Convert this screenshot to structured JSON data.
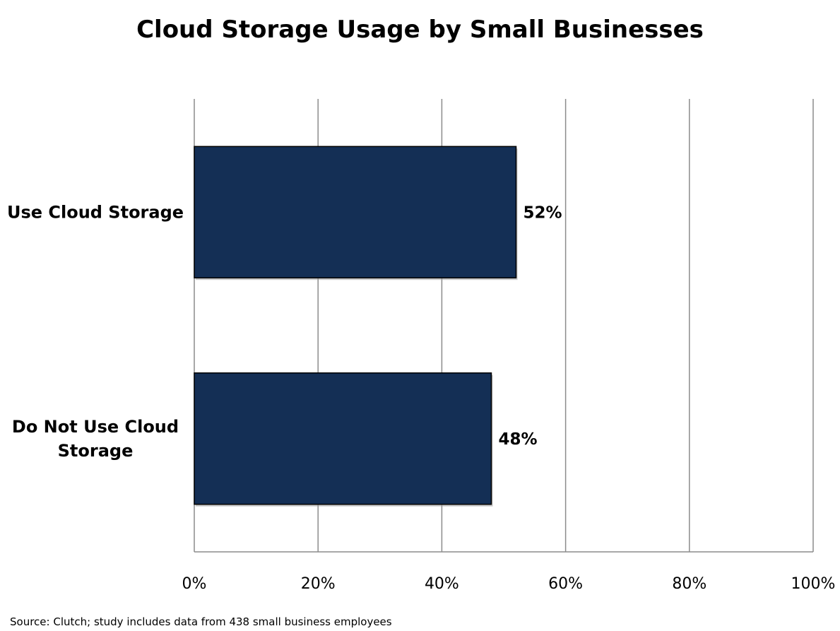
{
  "chart_data": {
    "type": "bar",
    "orientation": "horizontal",
    "title": "Cloud Storage Usage by Small Businesses",
    "categories": [
      "Use Cloud Storage",
      "Do Not Use Cloud Storage"
    ],
    "category_lines": [
      [
        "Use Cloud Storage"
      ],
      [
        "Do Not Use Cloud",
        "Storage"
      ]
    ],
    "values": [
      52,
      48
    ],
    "data_labels": [
      "52%",
      "48%"
    ],
    "xlim": [
      0,
      100
    ],
    "x_ticks": [
      0,
      20,
      40,
      60,
      80,
      100
    ],
    "x_tick_labels": [
      "0%",
      "20%",
      "40%",
      "60%",
      "80%",
      "100%"
    ],
    "grid": "vertical",
    "legend": "none",
    "bar_color": "#142F55"
  },
  "footer": {
    "source": "Source: Clutch; study includes data from 438 small business employees"
  }
}
